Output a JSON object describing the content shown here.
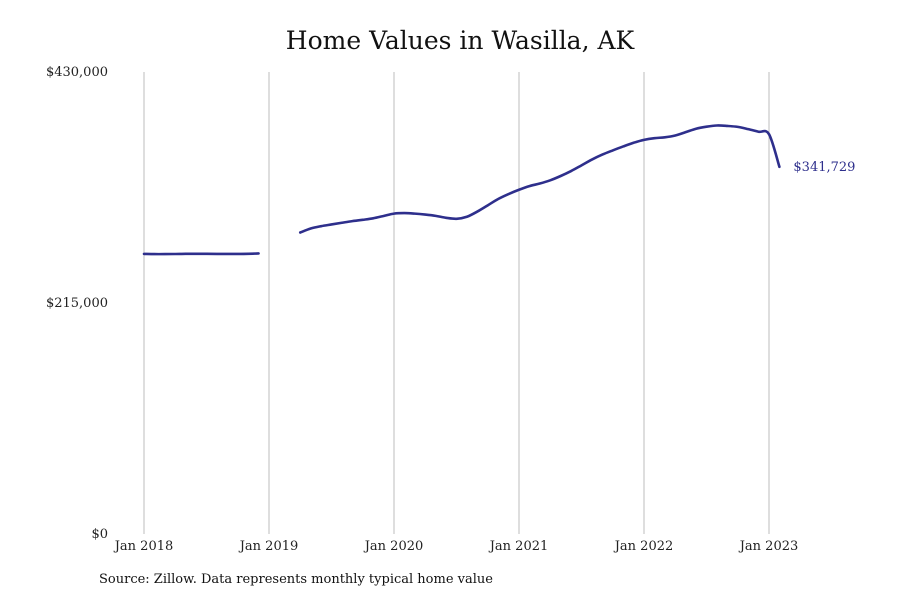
{
  "chart_data": {
    "type": "line",
    "title": "Home Values in Wasilla, AK",
    "xlabel": "",
    "ylabel": "",
    "ylim": [
      0,
      430000
    ],
    "y_ticks": [
      {
        "value": 0,
        "label": "$0"
      },
      {
        "value": 215000,
        "label": "$215,000"
      },
      {
        "value": 430000,
        "label": "$430,000"
      }
    ],
    "x_ticks": [
      "Jan 2018",
      "Jan 2019",
      "Jan 2020",
      "Jan 2021",
      "Jan 2022",
      "Jan 2023"
    ],
    "grid": "vertical",
    "line_color": "#2e2f8c",
    "gridline_color": "#bdbdbd",
    "series": [
      {
        "segments": [
          {
            "x": [
              "2018-01",
              "2018-02",
              "2018-03",
              "2018-04",
              "2018-05",
              "2018-06",
              "2018-07",
              "2018-08",
              "2018-09",
              "2018-10",
              "2018-11",
              "2018-12"
            ],
            "y": [
              260700,
              260500,
              260500,
              260600,
              260800,
              260800,
              260800,
              260700,
              260700,
              260700,
              260800,
              261100
            ]
          },
          {
            "x": [
              "2019-04",
              "2019-05",
              "2019-06",
              "2019-07",
              "2019-08",
              "2019-09",
              "2019-10",
              "2019-11",
              "2019-12",
              "2020-01",
              "2020-02",
              "2020-03",
              "2020-04",
              "2020-05",
              "2020-06",
              "2020-07",
              "2020-08",
              "2020-09",
              "2020-10",
              "2020-11",
              "2020-12",
              "2021-01",
              "2021-02",
              "2021-03",
              "2021-04",
              "2021-05",
              "2021-06",
              "2021-07",
              "2021-08",
              "2021-09",
              "2021-10",
              "2021-11",
              "2021-12",
              "2022-01",
              "2022-02",
              "2022-03",
              "2022-04",
              "2022-05",
              "2022-06",
              "2022-07",
              "2022-08",
              "2022-09",
              "2022-10",
              "2022-11",
              "2022-12",
              "2023-01",
              "2023-02"
            ],
            "y": [
              280600,
              284300,
              286500,
              288100,
              289700,
              291200,
              292400,
              293800,
              296000,
              298200,
              298700,
              298200,
              297300,
              296100,
              294300,
              293400,
              295300,
              300100,
              305900,
              311800,
              316400,
              320400,
              323800,
              326200,
              329200,
              333200,
              337800,
              343100,
              348500,
              353100,
              357000,
              360700,
              364100,
              366800,
              368400,
              369200,
              370900,
              374000,
              377200,
              379100,
              380200,
              379800,
              378900,
              376800,
              374400,
              372100,
              341729
            ]
          }
        ]
      }
    ],
    "end_label": "$341,729"
  },
  "footer": {
    "source": "Source: Zillow. Data represents monthly typical home value"
  }
}
